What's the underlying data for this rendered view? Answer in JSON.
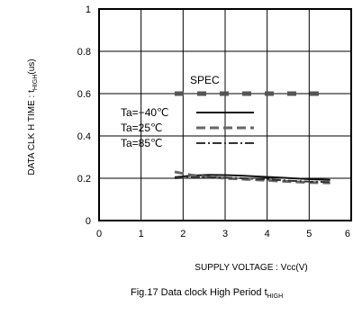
{
  "chart_data": {
    "type": "line",
    "title": "",
    "caption": "Fig.17  Data clock High Period t",
    "caption_sub": "HIGH",
    "xlabel": "SUPPLY VOLTAGE : Vcc(V)",
    "ylabel_pre": "DATA CLK H TIME : t",
    "ylabel_sub": "HIGH",
    "ylabel_post": "(us)",
    "xlim": [
      0,
      6
    ],
    "ylim": [
      0,
      1
    ],
    "xticks": [
      "0",
      "1",
      "2",
      "3",
      "4",
      "5",
      "6"
    ],
    "yticks": [
      "0",
      "0.2",
      "0.4",
      "0.6",
      "0.8",
      "1"
    ],
    "grid": true,
    "spec": {
      "label": "SPEC",
      "value": 0.6,
      "x": [
        1.8,
        5.5
      ]
    },
    "legend_position": "center-left",
    "series": [
      {
        "name": "Ta=−40℃",
        "style": "solid",
        "x": [
          1.8,
          2.2,
          2.6,
          3.0,
          3.4,
          3.8,
          4.2,
          4.6,
          5.0,
          5.5
        ],
        "y": [
          0.205,
          0.212,
          0.216,
          0.215,
          0.212,
          0.208,
          0.204,
          0.2,
          0.196,
          0.192
        ]
      },
      {
        "name": "Ta=25℃",
        "style": "dash",
        "x": [
          1.8,
          2.2,
          2.6,
          3.0,
          3.4,
          3.8,
          4.2,
          4.6,
          5.0,
          5.5
        ],
        "y": [
          0.23,
          0.215,
          0.206,
          0.2,
          0.196,
          0.192,
          0.188,
          0.184,
          0.18,
          0.178
        ]
      },
      {
        "name": "Ta=85℃",
        "style": "dashdot",
        "x": [
          1.8,
          2.2,
          2.6,
          3.0,
          3.4,
          3.8,
          4.2,
          4.6,
          5.0,
          5.5
        ],
        "y": [
          0.2,
          0.204,
          0.205,
          0.203,
          0.2,
          0.196,
          0.192,
          0.188,
          0.184,
          0.182
        ]
      }
    ]
  }
}
